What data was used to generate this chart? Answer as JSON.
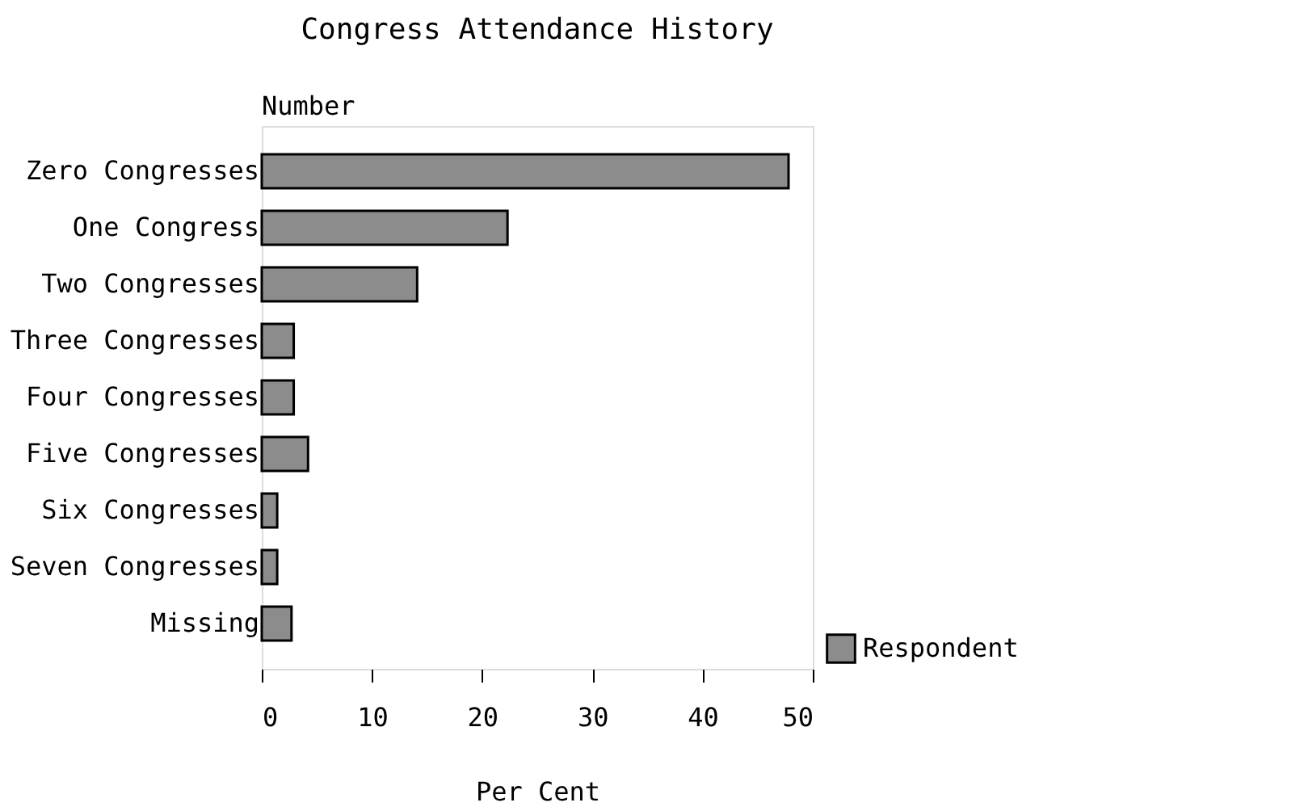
{
  "chart_data": {
    "type": "bar",
    "orientation": "horizontal",
    "title": "Congress Attendance History",
    "ylabel": "Number",
    "xlabel": "Per Cent",
    "categories": [
      "Zero Congresses",
      "One Congress",
      "Two Congresses",
      "Three Congresses",
      "Four Congresses",
      "Five Congresses",
      "Six Congresses",
      "Seven Congresses",
      "Missing"
    ],
    "series": [
      {
        "name": "Respondent",
        "color": "#8c8c8c",
        "values": [
          47.8,
          22.3,
          14.1,
          2.9,
          2.9,
          4.2,
          1.4,
          1.4,
          2.7
        ]
      }
    ],
    "xlim": [
      0,
      50
    ],
    "xticks": [
      0,
      10,
      20,
      30,
      40,
      50
    ],
    "grid": false,
    "legend": "bottom right"
  }
}
